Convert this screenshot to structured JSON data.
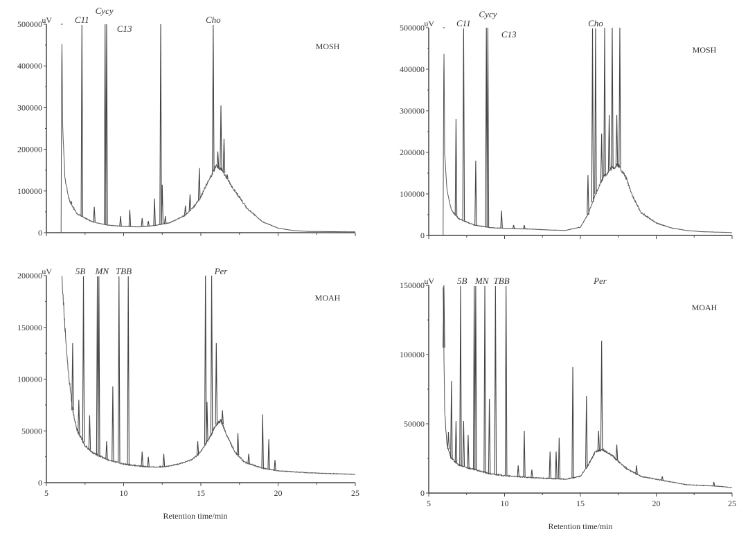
{
  "chart_data": [
    {
      "type": "line",
      "title": "MOSH",
      "ylabel": "uV",
      "xlabel": "",
      "xlim": [
        5,
        25
      ],
      "ylim": [
        0,
        500000
      ],
      "yticks": [
        "0",
        "100000",
        "200000",
        "300000",
        "400000",
        "500000"
      ],
      "xticks": [],
      "baseline": [
        [
          5.95,
          0
        ],
        [
          6.0,
          500000
        ],
        [
          6.05,
          260000
        ],
        [
          6.2,
          130000
        ],
        [
          6.5,
          75000
        ],
        [
          7,
          45000
        ],
        [
          7.5,
          35000
        ],
        [
          8,
          26000
        ],
        [
          9,
          18000
        ],
        [
          10,
          15000
        ],
        [
          11,
          14000
        ],
        [
          12,
          17000
        ],
        [
          13,
          24000
        ],
        [
          14,
          42000
        ],
        [
          14.5,
          60000
        ],
        [
          15,
          85000
        ],
        [
          15.5,
          125000
        ],
        [
          16,
          160000
        ],
        [
          16.4,
          150000
        ],
        [
          17,
          110000
        ],
        [
          17.5,
          85000
        ],
        [
          18,
          58000
        ],
        [
          19,
          26000
        ],
        [
          20,
          11000
        ],
        [
          21,
          5000
        ],
        [
          22,
          3000
        ],
        [
          25,
          2000
        ]
      ],
      "peaks": [
        [
          6.0,
          500000
        ],
        [
          6.6,
          75000
        ],
        [
          7.3,
          500000
        ],
        [
          8.1,
          62000
        ],
        [
          8.8,
          500000
        ],
        [
          8.9,
          500000
        ],
        [
          9.8,
          40000
        ],
        [
          10.4,
          55000
        ],
        [
          11.2,
          35000
        ],
        [
          11.6,
          28000
        ],
        [
          12.0,
          82000
        ],
        [
          12.4,
          500000
        ],
        [
          12.5,
          115000
        ],
        [
          12.7,
          40000
        ],
        [
          14.0,
          65000
        ],
        [
          14.3,
          92000
        ],
        [
          14.9,
          155000
        ],
        [
          15.8,
          500000
        ],
        [
          16.1,
          195000
        ],
        [
          16.3,
          305000
        ],
        [
          16.5,
          225000
        ],
        [
          16.7,
          140000
        ],
        [
          17.0,
          110000
        ]
      ],
      "annotations": [
        {
          "text": "C11",
          "x": 7.3
        },
        {
          "text": "Cycy",
          "x": 8.75
        },
        {
          "text": "C13",
          "x": 9.3
        },
        {
          "text": "Cho",
          "x": 15.8
        }
      ]
    },
    {
      "type": "line",
      "title": "MOSH",
      "ylabel": "uV",
      "xlabel": "",
      "xlim": [
        5,
        25
      ],
      "ylim": [
        0,
        500000
      ],
      "yticks": [
        "0",
        "100000",
        "200000",
        "300000",
        "400000",
        "500000"
      ],
      "xticks": [],
      "baseline": [
        [
          5.95,
          0
        ],
        [
          6.0,
          500000
        ],
        [
          6.05,
          200000
        ],
        [
          6.2,
          110000
        ],
        [
          6.5,
          60000
        ],
        [
          7,
          40000
        ],
        [
          8,
          25000
        ],
        [
          9,
          19000
        ],
        [
          10,
          17000
        ],
        [
          11,
          16000
        ],
        [
          12,
          15000
        ],
        [
          13,
          13000
        ],
        [
          14,
          12000
        ],
        [
          15,
          20000
        ],
        [
          15.5,
          50000
        ],
        [
          16,
          100000
        ],
        [
          16.5,
          140000
        ],
        [
          17,
          160000
        ],
        [
          17.5,
          170000
        ],
        [
          18,
          140000
        ],
        [
          18.5,
          90000
        ],
        [
          19,
          55000
        ],
        [
          20,
          30000
        ],
        [
          21,
          18000
        ],
        [
          22,
          12000
        ],
        [
          23,
          9000
        ],
        [
          25,
          7000
        ]
      ],
      "peaks": [
        [
          6.0,
          500000
        ],
        [
          6.8,
          280000
        ],
        [
          7.3,
          500000
        ],
        [
          8.1,
          180000
        ],
        [
          8.8,
          500000
        ],
        [
          8.9,
          500000
        ],
        [
          9.8,
          60000
        ],
        [
          10.6,
          25000
        ],
        [
          11.3,
          25000
        ],
        [
          15.5,
          145000
        ],
        [
          15.8,
          500000
        ],
        [
          16.0,
          500000
        ],
        [
          16.4,
          245000
        ],
        [
          16.6,
          500000
        ],
        [
          16.9,
          290000
        ],
        [
          17.1,
          500000
        ],
        [
          17.4,
          290000
        ],
        [
          17.6,
          500000
        ]
      ],
      "annotations": [
        {
          "text": "C11",
          "x": 7.3
        },
        {
          "text": "Cycy",
          "x": 8.9
        },
        {
          "text": "C13",
          "x": 9.7
        },
        {
          "text": "Cho",
          "x": 16.0
        }
      ]
    },
    {
      "type": "line",
      "title": "MOAH",
      "ylabel": "uV",
      "xlabel": "Retention time/min",
      "xlim": [
        5,
        25
      ],
      "ylim": [
        0,
        200000
      ],
      "yticks": [
        "0",
        "50000",
        "100000",
        "150000",
        "200000"
      ],
      "xticks": [
        "5",
        "10",
        "15",
        "20",
        "25"
      ],
      "baseline": [
        [
          6.0,
          200000
        ],
        [
          6.2,
          150000
        ],
        [
          6.4,
          110000
        ],
        [
          6.7,
          70000
        ],
        [
          7,
          50000
        ],
        [
          7.5,
          36000
        ],
        [
          8,
          29000
        ],
        [
          9,
          22000
        ],
        [
          10,
          18000
        ],
        [
          11,
          16000
        ],
        [
          12,
          15000
        ],
        [
          13,
          16000
        ],
        [
          14,
          20000
        ],
        [
          14.5,
          23000
        ],
        [
          15,
          30000
        ],
        [
          15.5,
          42000
        ],
        [
          16,
          56000
        ],
        [
          16.3,
          60000
        ],
        [
          16.7,
          45000
        ],
        [
          17.2,
          30000
        ],
        [
          17.8,
          20000
        ],
        [
          19,
          14000
        ],
        [
          20,
          11500
        ],
        [
          22,
          9500
        ],
        [
          25,
          8000
        ]
      ],
      "peaks": [
        [
          6.7,
          135000
        ],
        [
          7.1,
          80000
        ],
        [
          7.4,
          200000
        ],
        [
          7.8,
          65000
        ],
        [
          8.3,
          200000
        ],
        [
          8.4,
          200000
        ],
        [
          8.9,
          40000
        ],
        [
          9.3,
          93000
        ],
        [
          9.7,
          200000
        ],
        [
          10.3,
          200000
        ],
        [
          11.2,
          30000
        ],
        [
          11.6,
          25000
        ],
        [
          12.6,
          28000
        ],
        [
          14.8,
          40000
        ],
        [
          15.3,
          200000
        ],
        [
          15.4,
          78000
        ],
        [
          15.7,
          200000
        ],
        [
          16.0,
          135000
        ],
        [
          16.4,
          70000
        ],
        [
          17.4,
          48000
        ],
        [
          18.1,
          28000
        ],
        [
          19.0,
          66000
        ],
        [
          19.4,
          42000
        ],
        [
          19.8,
          22000
        ]
      ],
      "annotations": [
        {
          "text": "5B",
          "x": 7.2
        },
        {
          "text": "MN",
          "x": 8.6
        },
        {
          "text": "TBB",
          "x": 10.0
        },
        {
          "text": "Per",
          "x": 16.3
        }
      ]
    },
    {
      "type": "line",
      "title": "MOAH",
      "ylabel": "uV",
      "xlabel": "Retention time/min",
      "xlim": [
        5,
        25
      ],
      "ylim": [
        0,
        150000
      ],
      "yticks": [
        "0",
        "50000",
        "100000",
        "150000"
      ],
      "xticks": [
        "5",
        "10",
        "15",
        "20",
        "25"
      ],
      "baseline": [
        [
          5.95,
          150000
        ],
        [
          6.05,
          60000
        ],
        [
          6.2,
          35000
        ],
        [
          6.5,
          25000
        ],
        [
          7,
          20000
        ],
        [
          8,
          17000
        ],
        [
          9,
          14000
        ],
        [
          10,
          12500
        ],
        [
          12,
          11000
        ],
        [
          14,
          10000
        ],
        [
          15,
          12000
        ],
        [
          15.5,
          20000
        ],
        [
          16,
          30000
        ],
        [
          16.5,
          31000
        ],
        [
          17,
          28000
        ],
        [
          18,
          18000
        ],
        [
          19,
          12000
        ],
        [
          20,
          10000
        ],
        [
          21,
          8000
        ],
        [
          22,
          6000
        ],
        [
          24,
          5000
        ],
        [
          25,
          4000
        ]
      ],
      "peaks": [
        [
          6.0,
          150000
        ],
        [
          6.3,
          44000
        ],
        [
          6.5,
          81000
        ],
        [
          6.8,
          52000
        ],
        [
          7.1,
          150000
        ],
        [
          7.3,
          52000
        ],
        [
          7.6,
          42000
        ],
        [
          8.0,
          150000
        ],
        [
          8.1,
          150000
        ],
        [
          8.7,
          150000
        ],
        [
          9.0,
          68000
        ],
        [
          9.4,
          150000
        ],
        [
          10.1,
          150000
        ],
        [
          10.9,
          20000
        ],
        [
          11.3,
          45000
        ],
        [
          11.8,
          17000
        ],
        [
          13.0,
          30000
        ],
        [
          13.4,
          30000
        ],
        [
          13.6,
          40000
        ],
        [
          14.5,
          91000
        ],
        [
          15.4,
          70000
        ],
        [
          16.2,
          45000
        ],
        [
          16.4,
          110000
        ],
        [
          17.4,
          35000
        ],
        [
          18.7,
          20000
        ],
        [
          20.4,
          12000
        ],
        [
          23.8,
          8000
        ]
      ],
      "annotations": [
        {
          "text": "5B",
          "x": 7.2
        },
        {
          "text": "MN",
          "x": 8.5
        },
        {
          "text": "TBB",
          "x": 9.8
        },
        {
          "text": "Per",
          "x": 16.3
        }
      ]
    }
  ]
}
